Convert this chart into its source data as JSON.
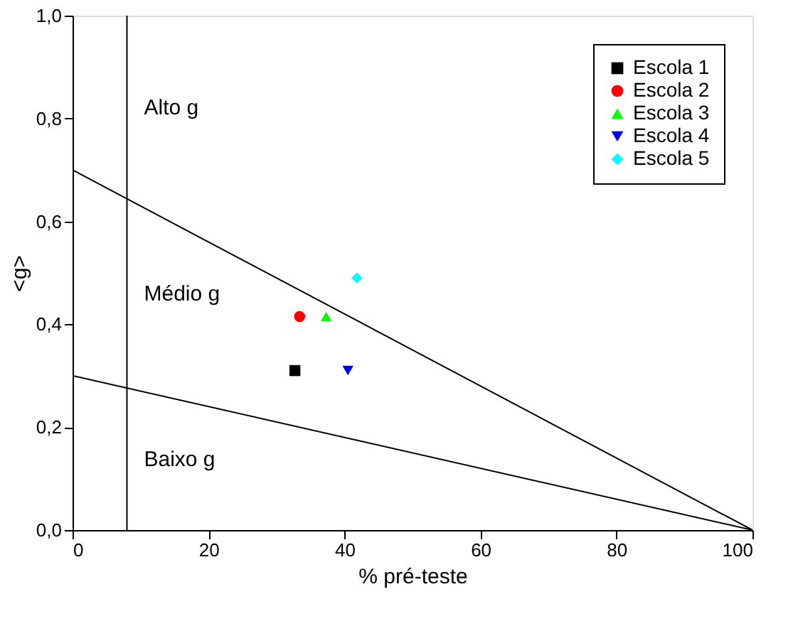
{
  "chart_data": {
    "type": "scatter",
    "xlabel": "% pré-teste",
    "ylabel": "<g>",
    "xlim": [
      0,
      100
    ],
    "xticks": [
      0,
      20,
      40,
      60,
      80,
      100
    ],
    "ylim": [
      0,
      1.0
    ],
    "yticks": [
      {
        "value": 0,
        "label": "0,0"
      },
      {
        "value": 0.2,
        "label": "0,2"
      },
      {
        "value": 0.4,
        "label": "0,4"
      },
      {
        "value": 0.6,
        "label": "0,6"
      },
      {
        "value": 0.8,
        "label": "0,8"
      },
      {
        "value": 1.0,
        "label": "1,0"
      }
    ],
    "grid": false,
    "legend": "top right",
    "series": [
      {
        "name": "Escola 1",
        "color": "#000000",
        "marker": "square",
        "x": [
          32.7
        ],
        "values": [
          0.31
        ]
      },
      {
        "name": "Escola 2",
        "color": "#ff0000",
        "marker": "circle",
        "x": [
          33.4
        ],
        "values": [
          0.415
        ]
      },
      {
        "name": "Escola 3",
        "color": "#00ff00",
        "marker": "triangle",
        "x": [
          37.3
        ],
        "values": [
          0.415
        ]
      },
      {
        "name": "Escola 4",
        "color": "#0000ff",
        "marker": "triangle-down",
        "x": [
          40.5
        ],
        "values": [
          0.31
        ]
      },
      {
        "name": "Escola 5",
        "color": "#00ffff",
        "marker": "diamond",
        "x": [
          41.8
        ],
        "values": [
          0.49
        ]
      },
      {
        "type": "line",
        "color": "#000000",
        "x": [
          0,
          100
        ],
        "values": [
          0.7,
          0
        ]
      },
      {
        "type": "line",
        "color": "#000000",
        "x": [
          0,
          100
        ],
        "values": [
          0.3,
          0
        ]
      },
      {
        "type": "line",
        "color": "#000000",
        "x": [
          8,
          8,
          8,
          8
        ],
        "values": [
          1.0,
          0.644,
          0.276,
          0
        ]
      }
    ],
    "annotations": [
      "Alto g",
      "Médio g",
      "Baixo g"
    ]
  }
}
